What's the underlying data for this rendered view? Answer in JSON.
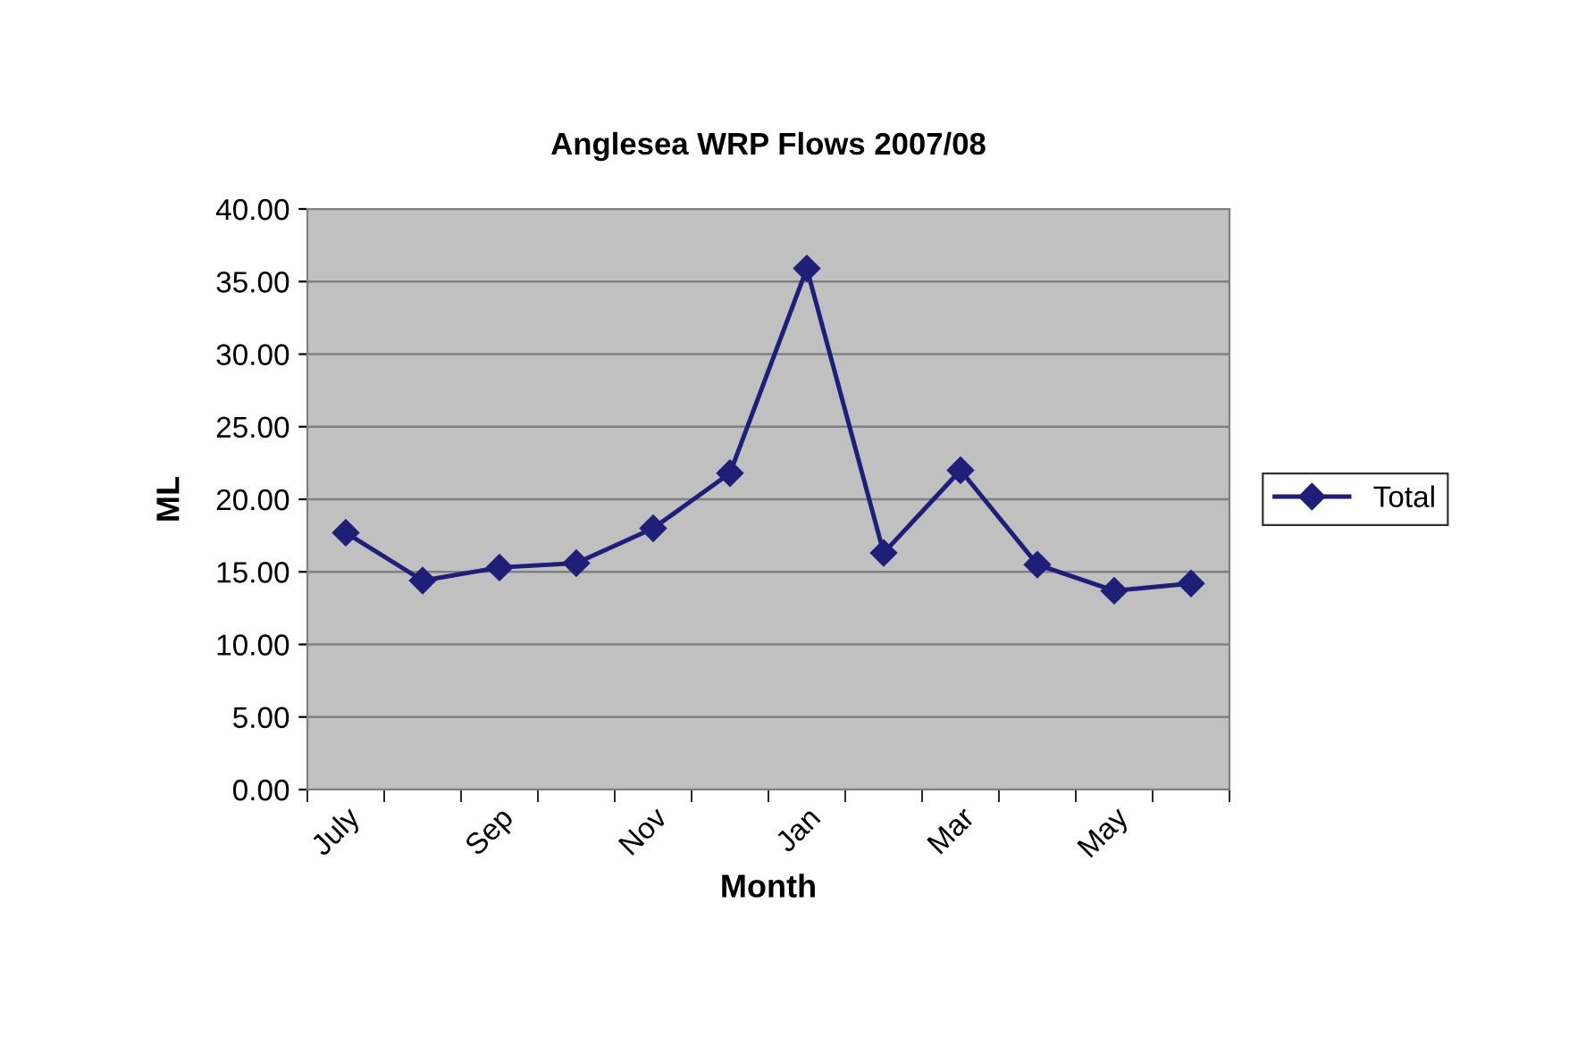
{
  "chart_data": {
    "type": "line",
    "title": "Anglesea WRP Flows 2007/08",
    "xlabel": "Month",
    "ylabel": "ML",
    "categories": [
      "July",
      null,
      "Sep",
      null,
      "Nov",
      null,
      "Jan",
      null,
      "Mar",
      null,
      "May",
      null
    ],
    "series": [
      {
        "name": "Total",
        "color": "#1f1f7a",
        "values": [
          17.7,
          14.4,
          15.3,
          15.6,
          18.0,
          21.8,
          35.9,
          16.3,
          22.0,
          15.5,
          13.7,
          14.2
        ]
      }
    ],
    "ylim": [
      0,
      40
    ],
    "yticks": [
      {
        "value": 0,
        "label": "0.00"
      },
      {
        "value": 5,
        "label": "5.00"
      },
      {
        "value": 10,
        "label": "10.00"
      },
      {
        "value": 15,
        "label": "15.00"
      },
      {
        "value": 20,
        "label": "20.00"
      },
      {
        "value": 25,
        "label": "25.00"
      },
      {
        "value": 30,
        "label": "30.00"
      },
      {
        "value": 35,
        "label": "35.00"
      },
      {
        "value": 40,
        "label": "40.00"
      }
    ],
    "grid": "y",
    "legend": "right",
    "marker": "diamond",
    "line_style": "solid"
  }
}
